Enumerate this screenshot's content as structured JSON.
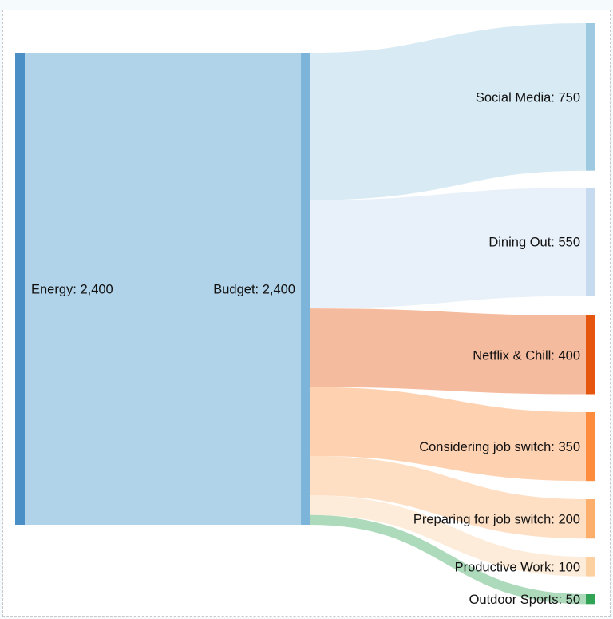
{
  "chart_data": {
    "type": "sankey",
    "title": "",
    "nodes": [
      {
        "id": "energy",
        "name": "Energy",
        "value": 2400,
        "label": "Energy: 2,400",
        "color": "#4a8fc6"
      },
      {
        "id": "budget",
        "name": "Budget",
        "value": 2400,
        "label": "Budget: 2,400",
        "color": "#7db5da"
      },
      {
        "id": "social",
        "name": "Social Media",
        "value": 750,
        "label": "Social Media: 750",
        "color": "#9ecae1"
      },
      {
        "id": "dining",
        "name": "Dining Out",
        "value": 550,
        "label": "Dining Out: 550",
        "color": "#c6dbef"
      },
      {
        "id": "netflix",
        "name": "Netflix & Chill",
        "value": 400,
        "label": "Netflix & Chill: 400",
        "color": "#e6550d"
      },
      {
        "id": "considering",
        "name": "Considering job switch",
        "value": 350,
        "label": "Considering job switch: 350",
        "color": "#fd8d3c"
      },
      {
        "id": "preparing",
        "name": "Preparing for job switch",
        "value": 200,
        "label": "Preparing for job switch: 200",
        "color": "#fdae6b"
      },
      {
        "id": "productive",
        "name": "Productive Work",
        "value": 100,
        "label": "Productive Work: 100",
        "color": "#fdd0a2"
      },
      {
        "id": "outdoor",
        "name": "Outdoor Sports",
        "value": 50,
        "label": "Outdoor Sports: 50",
        "color": "#31a354"
      }
    ],
    "links": [
      {
        "source": "energy",
        "target": "budget",
        "value": 2400
      },
      {
        "source": "budget",
        "target": "social",
        "value": 750
      },
      {
        "source": "budget",
        "target": "dining",
        "value": 550
      },
      {
        "source": "budget",
        "target": "netflix",
        "value": 400
      },
      {
        "source": "budget",
        "target": "considering",
        "value": 350
      },
      {
        "source": "budget",
        "target": "preparing",
        "value": 200
      },
      {
        "source": "budget",
        "target": "productive",
        "value": 100
      },
      {
        "source": "budget",
        "target": "outdoor",
        "value": 50
      }
    ]
  }
}
